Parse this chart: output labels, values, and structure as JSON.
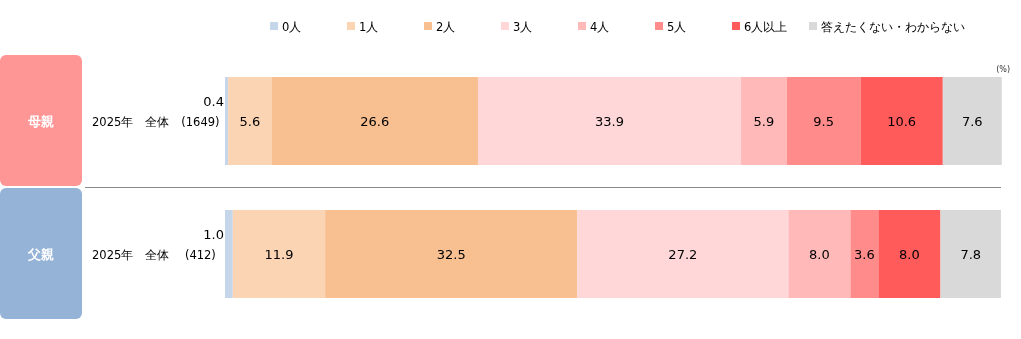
{
  "chart_data": {
    "type": "bar",
    "orientation": "horizontal",
    "stacked": true,
    "legend": "top",
    "xlabel": "(%)",
    "xlim": [
      0,
      100
    ],
    "categories": [
      "2025年　全体　(1649)",
      "2025年　全体　 (412)"
    ],
    "annotations": [
      "母親",
      "父親"
    ],
    "series": [
      {
        "name": "0人",
        "color": "#c5d5ea",
        "values": [
          0.4,
          1.0
        ],
        "value_labels": [
          "0.4",
          "1.0"
        ]
      },
      {
        "name": "1人",
        "color": "#fbd4b4",
        "values": [
          5.6,
          11.9
        ],
        "value_labels": [
          "5.6",
          "11.9"
        ]
      },
      {
        "name": "2人",
        "color": "#f8c090",
        "values": [
          26.6,
          32.5
        ],
        "value_labels": [
          "26.6",
          "32.5"
        ]
      },
      {
        "name": "3人",
        "color": "#ffd7d9",
        "values": [
          33.9,
          27.2
        ],
        "value_labels": [
          "33.9",
          "27.2"
        ]
      },
      {
        "name": "4人",
        "color": "#ffb9b9",
        "values": [
          5.9,
          8.0
        ],
        "value_labels": [
          "5.9",
          "8.0"
        ]
      },
      {
        "name": "5人",
        "color": "#ff8b8b",
        "values": [
          9.5,
          3.6
        ],
        "value_labels": [
          "9.5",
          "3.6"
        ]
      },
      {
        "name": "6人以上",
        "color": "#ff5b5b",
        "values": [
          10.6,
          8.0
        ],
        "value_labels": [
          "10.6",
          "8.0"
        ]
      },
      {
        "name": "答えたくない・わからない",
        "color": "#d9d9d9",
        "values": [
          7.6,
          7.8
        ],
        "value_labels": [
          "7.6",
          "7.8"
        ]
      }
    ]
  }
}
